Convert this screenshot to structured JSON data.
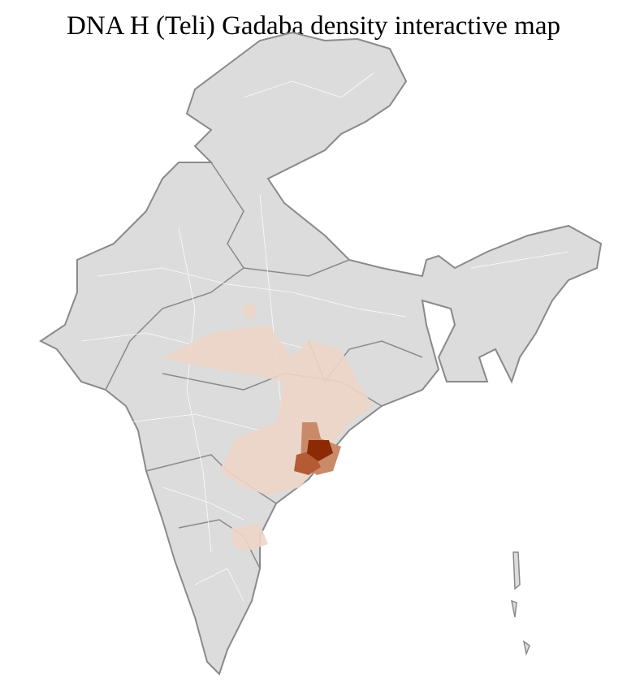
{
  "title": "DNA H (Teli) Gadaba density interactive map",
  "colors": {
    "base": "#dcdcdc",
    "border": "#8a8a8a",
    "district_line": "#ffffff",
    "low": "#edd5c8",
    "medium": "#c98a6a",
    "high": "#b45a35",
    "max": "#8b2a05"
  }
}
